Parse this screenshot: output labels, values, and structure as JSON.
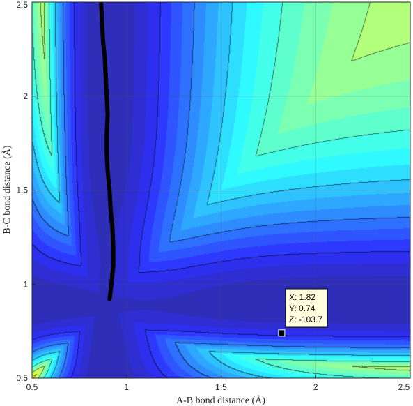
{
  "chart_data": {
    "type": "heatmap",
    "subtype": "filled-contour",
    "colormap": "jet",
    "title": "",
    "xlabel": "A-B bond distance (Å)",
    "ylabel": "B-C bond distance (Å)",
    "xlim": [
      0.5,
      2.5
    ],
    "ylim": [
      0.5,
      2.5
    ],
    "xticks": [
      0.5,
      1,
      1.5,
      2,
      2.5
    ],
    "xtick_labels": [
      "0.5",
      "1",
      "1.5",
      "2",
      "2.5"
    ],
    "yticks": [
      0.5,
      1,
      1.5,
      2,
      2.5
    ],
    "ytick_labels": [
      "0.5",
      "1",
      "1.5",
      "2",
      "2.5"
    ],
    "grid": true,
    "overlay_line": {
      "name": "",
      "points": [
        [
          0.91,
          0.92
        ],
        [
          0.92,
          1.0
        ],
        [
          0.93,
          1.1
        ],
        [
          0.93,
          1.2
        ],
        [
          0.925,
          1.3
        ],
        [
          0.915,
          1.4
        ],
        [
          0.91,
          1.5
        ],
        [
          0.9,
          1.6
        ],
        [
          0.895,
          1.7
        ],
        [
          0.895,
          1.8
        ],
        [
          0.9,
          1.9
        ],
        [
          0.895,
          2.0
        ],
        [
          0.89,
          2.1
        ],
        [
          0.885,
          2.2
        ],
        [
          0.875,
          2.3
        ],
        [
          0.87,
          2.4
        ],
        [
          0.865,
          2.5
        ]
      ]
    },
    "datatip": {
      "x": 1.82,
      "y": 0.74,
      "z": -103.7,
      "line_x": "X: 1.82",
      "line_y": "Y: 0.74",
      "line_z": "Z: -103.7"
    }
  }
}
